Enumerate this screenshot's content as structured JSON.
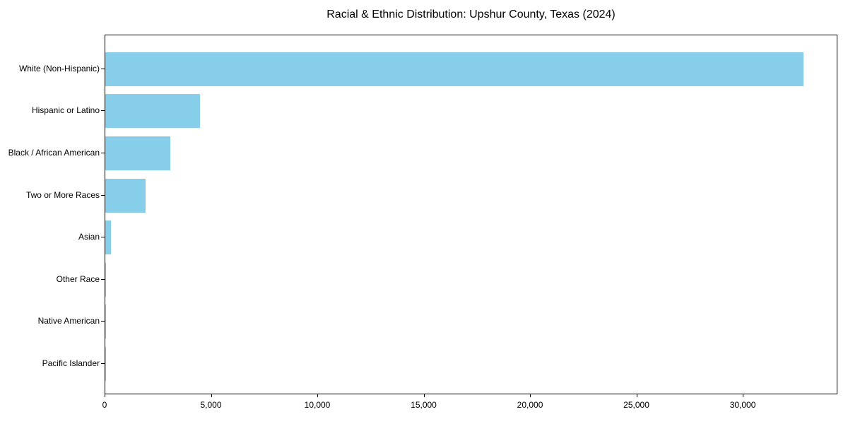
{
  "chart_data": {
    "type": "bar",
    "orientation": "horizontal",
    "title": "Racial & Ethnic Distribution: Upshur County, Texas (2024)",
    "categories": [
      "White (Non-Hispanic)",
      "Hispanic or Latino",
      "Black / African American",
      "Two or More Races",
      "Asian",
      "Other Race",
      "Native American",
      "Pacific Islander"
    ],
    "values": [
      32820,
      4450,
      3070,
      1880,
      280,
      40,
      15,
      5
    ],
    "xlabel": "",
    "ylabel": "",
    "xlim": [
      0,
      34450
    ],
    "x_ticks": [
      0,
      5000,
      10000,
      15000,
      20000,
      25000,
      30000
    ],
    "x_tick_labels": [
      "0",
      "5,000",
      "10,000",
      "15,000",
      "20,000",
      "25,000",
      "30,000"
    ],
    "bar_color": "#87ceeb",
    "axis_color": "#000000",
    "grid": false,
    "legend": "none"
  }
}
